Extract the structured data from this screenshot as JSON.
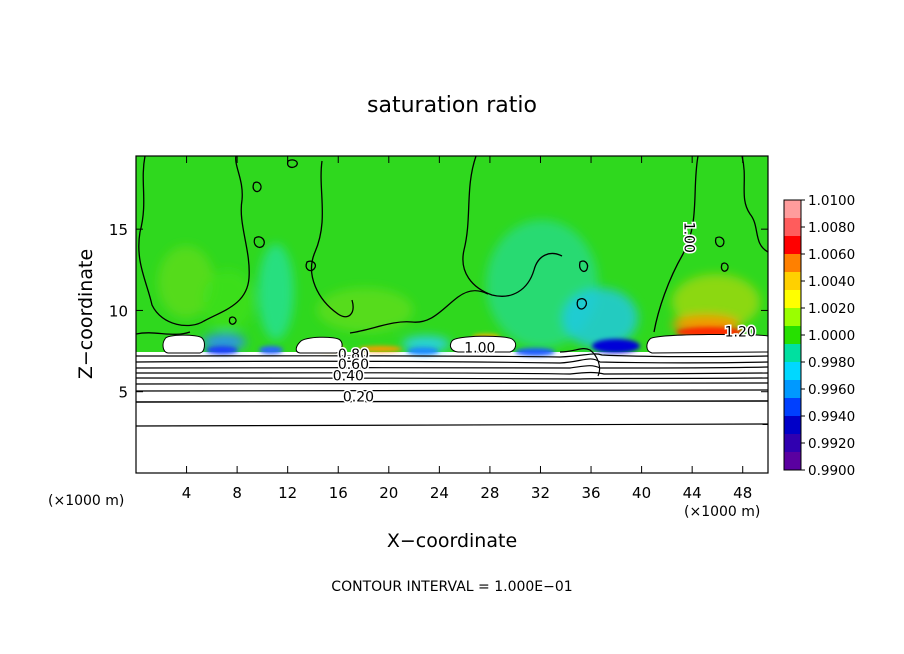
{
  "chart_data": {
    "type": "heatmap",
    "title": "saturation ratio",
    "xlabel": "X−coordinate",
    "ylabel": "Z−coordinate",
    "x_unit_left": "(×1000 m)",
    "x_unit_right": "(×1000 m)",
    "xlim": [
      0,
      50
    ],
    "ylim": [
      0,
      19.5
    ],
    "x_ticks": [
      4,
      8,
      12,
      16,
      20,
      24,
      28,
      32,
      36,
      40,
      44,
      48
    ],
    "y_ticks": [
      5,
      10,
      15
    ],
    "colorbar": {
      "levels": [
        "1.0100",
        "1.0080",
        "1.0060",
        "1.0040",
        "1.0020",
        "1.0000",
        "0.9980",
        "0.9960",
        "0.9940",
        "0.9920",
        "0.9900"
      ],
      "colors": [
        "#ff9c9c",
        "#ff5c5c",
        "#ff0000",
        "#ff8000",
        "#ffd000",
        "#ffff00",
        "#9aff00",
        "#26e000",
        "#00e0a0",
        "#00d8ff",
        "#0099ff",
        "#0040ff",
        "#0000c8",
        "#3000b0",
        "#5a00a0"
      ]
    },
    "contour_labels": [
      {
        "text": "1.00",
        "x": 27.2,
        "z": 7.4
      },
      {
        "text": "1.00",
        "x": 43.4,
        "z": 14.5
      },
      {
        "text": "1.20",
        "x": 47.8,
        "z": 8.4
      },
      {
        "text": "0.80",
        "x": 17.2,
        "z": 7.0
      },
      {
        "text": "0.60",
        "x": 17.2,
        "z": 6.4
      },
      {
        "text": "0.40",
        "x": 16.8,
        "z": 5.7
      },
      {
        "text": "0.20",
        "x": 17.6,
        "z": 4.4
      }
    ],
    "contour_interval": "CONTOUR INTERVAL = 1.000E−01"
  }
}
